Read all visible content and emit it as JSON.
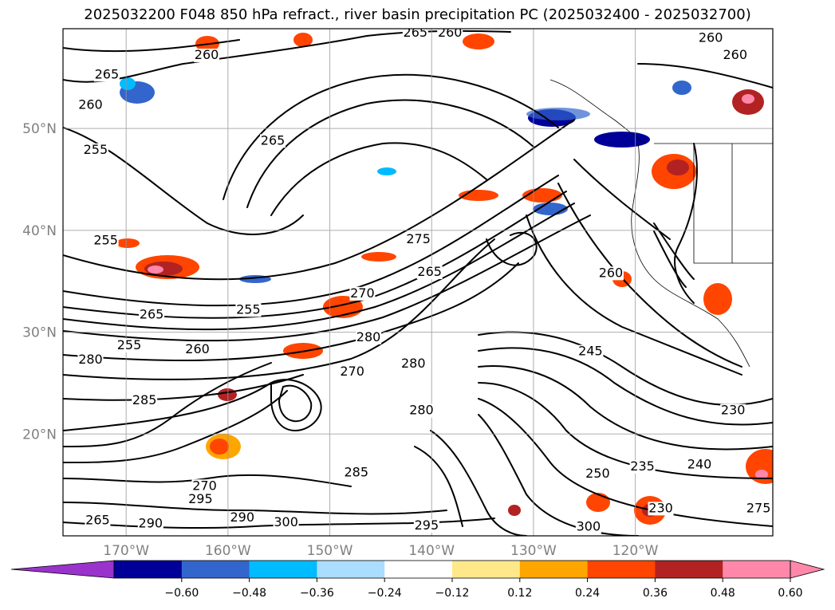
{
  "title": "2025032200 F048 850 hPa refract., river basin precipitation PC (2025032400 - 2025032700)",
  "map": {
    "lat_labels": [
      "50°N",
      "40°N",
      "30°N",
      "20°N"
    ],
    "lon_labels": [
      "170°W",
      "160°W",
      "150°W",
      "140°W",
      "130°W",
      "120°W"
    ],
    "lat_values": [
      50,
      40,
      30,
      20
    ],
    "lon_values": [
      -170,
      -160,
      -150,
      -140,
      -130,
      -120
    ],
    "extent": {
      "lon_min": -176.2,
      "lon_max": -106.5,
      "lat_min": 10,
      "lat_max": 59.8
    },
    "grid": true,
    "contour_labels": [
      {
        "text": "265",
        "lon": -141.6,
        "lat": 59.1
      },
      {
        "text": "260",
        "lon": -138.2,
        "lat": 59.1
      },
      {
        "text": "260",
        "lon": -112.6,
        "lat": 58.6
      },
      {
        "text": "260",
        "lon": -110.2,
        "lat": 56.9
      },
      {
        "text": "260",
        "lon": -162.1,
        "lat": 56.9
      },
      {
        "text": "265",
        "lon": -171.9,
        "lat": 55.0
      },
      {
        "text": "260",
        "lon": -173.5,
        "lat": 52.0
      },
      {
        "text": "255",
        "lon": -173.0,
        "lat": 47.6
      },
      {
        "text": "265",
        "lon": -155.6,
        "lat": 48.5
      },
      {
        "text": "255",
        "lon": -172.0,
        "lat": 38.7
      },
      {
        "text": "275",
        "lon": -141.3,
        "lat": 38.8
      },
      {
        "text": "265",
        "lon": -140.2,
        "lat": 35.6
      },
      {
        "text": "260",
        "lon": -122.4,
        "lat": 35.5
      },
      {
        "text": "270",
        "lon": -146.8,
        "lat": 33.5
      },
      {
        "text": "255",
        "lon": -158.0,
        "lat": 31.9
      },
      {
        "text": "265",
        "lon": -167.5,
        "lat": 31.4
      },
      {
        "text": "255",
        "lon": -169.7,
        "lat": 28.4
      },
      {
        "text": "260",
        "lon": -163.0,
        "lat": 28.0
      },
      {
        "text": "280",
        "lon": -146.2,
        "lat": 29.2
      },
      {
        "text": "280",
        "lon": -141.8,
        "lat": 26.6
      },
      {
        "text": "245",
        "lon": -124.4,
        "lat": 27.8
      },
      {
        "text": "280",
        "lon": -173.5,
        "lat": 27.0
      },
      {
        "text": "270",
        "lon": -147.8,
        "lat": 25.8
      },
      {
        "text": "285",
        "lon": -168.2,
        "lat": 23.0
      },
      {
        "text": "280",
        "lon": -141.0,
        "lat": 22.0
      },
      {
        "text": "230",
        "lon": -110.4,
        "lat": 22.0
      },
      {
        "text": "235",
        "lon": -119.3,
        "lat": 16.5
      },
      {
        "text": "240",
        "lon": -113.7,
        "lat": 16.7
      },
      {
        "text": "285",
        "lon": -147.4,
        "lat": 15.9
      },
      {
        "text": "250",
        "lon": -123.7,
        "lat": 15.8
      },
      {
        "text": "270",
        "lon": -162.3,
        "lat": 14.6
      },
      {
        "text": "295",
        "lon": -162.7,
        "lat": 13.3
      },
      {
        "text": "230",
        "lon": -117.5,
        "lat": 12.4
      },
      {
        "text": "275",
        "lon": -107.9,
        "lat": 12.4
      },
      {
        "text": "290",
        "lon": -158.6,
        "lat": 11.5
      },
      {
        "text": "300",
        "lon": -154.3,
        "lat": 11.0
      },
      {
        "text": "295",
        "lon": -140.5,
        "lat": 10.7
      },
      {
        "text": "300",
        "lon": -124.6,
        "lat": 10.6
      },
      {
        "text": "290",
        "lon": -167.6,
        "lat": 10.9
      },
      {
        "text": "265",
        "lon": -172.8,
        "lat": 11.2
      }
    ]
  },
  "colorbar": {
    "ticks": [
      "−0.60",
      "−0.48",
      "−0.36",
      "−0.24",
      "−0.12",
      "0.12",
      "0.24",
      "0.36",
      "0.48",
      "0.60"
    ],
    "colors": [
      "#9933cc",
      "#000099",
      "#3366cc",
      "#00bbff",
      "#aaddff",
      "#ffffff",
      "#ffe88a",
      "#ffa500",
      "#ff4500",
      "#b22222",
      "#ff88aa",
      "#ff88aa"
    ]
  }
}
